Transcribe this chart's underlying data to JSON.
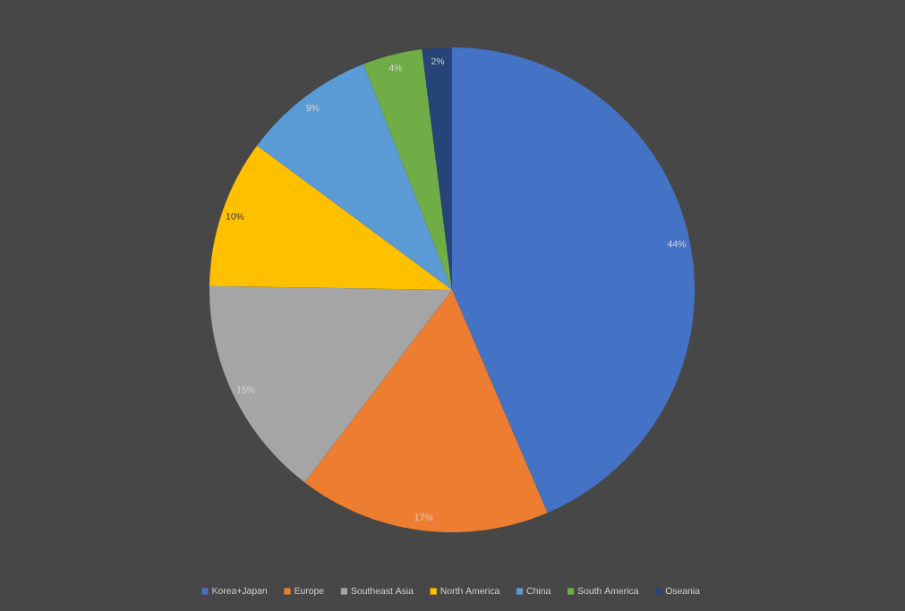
{
  "chart_data": {
    "type": "pie",
    "categories": [
      "Korea+Japan",
      "Europe",
      "Southeast Asia",
      "North America",
      "China",
      "South America",
      "Oseania"
    ],
    "values": [
      44,
      17,
      15,
      10,
      9,
      4,
      2
    ],
    "colors": [
      "#4472c4",
      "#ed7d31",
      "#a5a5a5",
      "#ffc000",
      "#5b9bd5",
      "#70ad47",
      "#264478"
    ],
    "value_labels": [
      "44%",
      "17%",
      "15%",
      "10%",
      "9%",
      "4%",
      "2%"
    ],
    "legend": "bottom"
  }
}
